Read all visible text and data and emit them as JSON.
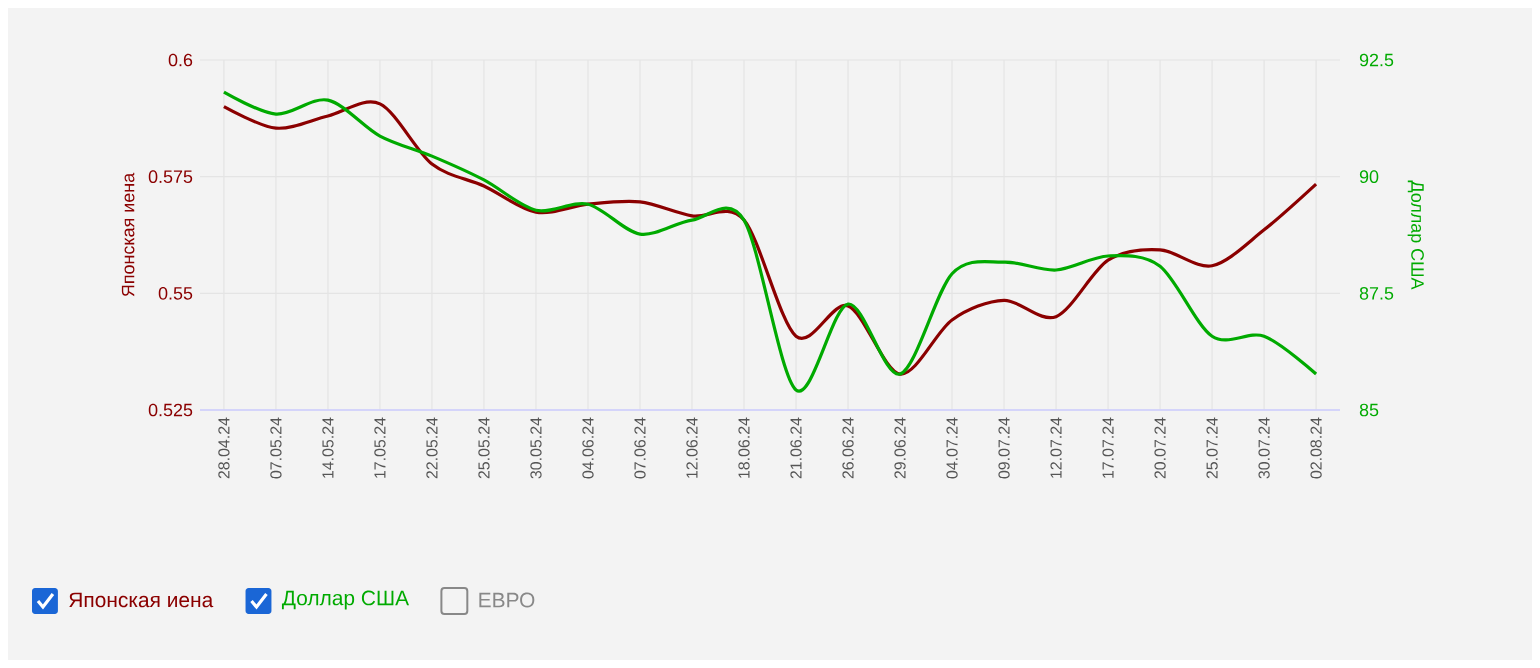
{
  "chart_data": {
    "type": "line",
    "ylabel": "Японская иена",
    "y2label": "Доллар США",
    "categories": [
      "28.04.24",
      "07.05.24",
      "14.05.24",
      "17.05.24",
      "22.05.24",
      "25.05.24",
      "30.05.24",
      "04.06.24",
      "07.06.24",
      "12.06.24",
      "18.06.24",
      "21.06.24",
      "26.06.24",
      "29.06.24",
      "04.07.24",
      "09.07.24",
      "12.07.24",
      "17.07.24",
      "20.07.24",
      "25.07.24",
      "30.07.24",
      "02.08.24"
    ],
    "series": [
      {
        "name": "Японская иена",
        "color": "#8b0000",
        "values": [
          0.59,
          0.5854,
          0.588,
          0.5906,
          0.5777,
          0.573,
          0.5674,
          0.5691,
          0.5696,
          0.5666,
          0.5657,
          0.5408,
          0.5473,
          0.5327,
          0.5443,
          0.5485,
          0.545,
          0.5571,
          0.5593,
          0.5559,
          0.5636,
          0.5734
        ]
      },
      {
        "name": "Доллар США",
        "color": "#00aa00",
        "axis": "y2",
        "values": [
          91.81,
          91.34,
          91.64,
          90.87,
          90.44,
          89.93,
          89.28,
          89.41,
          88.77,
          89.07,
          89.07,
          85.43,
          87.27,
          85.77,
          87.92,
          88.17,
          88.0,
          88.3,
          88.08,
          86.58,
          86.58,
          85.77
        ]
      },
      {
        "name": "ЕВРО",
        "color": "#888888",
        "axis": "y2",
        "values": [
          null,
          null,
          null,
          null,
          null,
          null,
          null,
          null,
          null,
          null,
          null,
          null,
          null,
          null,
          null,
          null,
          null,
          null,
          null,
          null,
          null,
          null
        ]
      }
    ],
    "ylim": [
      0.525,
      0.6
    ],
    "yticks": [
      0.6,
      0.575,
      0.55,
      0.525
    ],
    "y2lim": [
      85,
      92.5
    ],
    "y2ticks": [
      92.5,
      90,
      87.5,
      85
    ],
    "grid": true,
    "legend": "bottom",
    "marker": "none",
    "line_style": "solid"
  }
}
